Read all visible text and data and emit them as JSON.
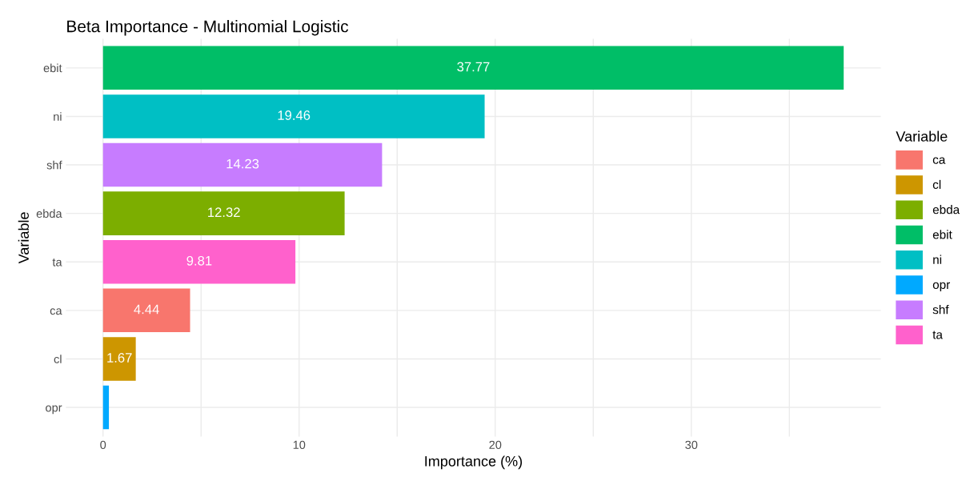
{
  "chart_data": {
    "type": "bar",
    "orientation": "horizontal",
    "title": "Beta Importance - Multinomial Logistic",
    "xlabel": "Importance (%)",
    "ylabel": "Variable",
    "legend_title": "Variable",
    "legend": "right",
    "grid": true,
    "categories": [
      "ebit",
      "ni",
      "shf",
      "ebda",
      "ta",
      "ca",
      "cl",
      "opr"
    ],
    "xlim": [
      -1.89,
      39.66
    ],
    "xticks": [
      0,
      {
        "value": 5,
        "label": null
      },
      10,
      {
        "value": 15,
        "label": null
      },
      20,
      {
        "value": 25,
        "label": null
      },
      30,
      {
        "value": 35,
        "label": null
      }
    ],
    "series": [
      {
        "name": "ca",
        "color": "#f8766d",
        "values": [
          null,
          null,
          null,
          null,
          null,
          4.44,
          null,
          null
        ],
        "value_labels": [
          null,
          null,
          null,
          null,
          null,
          "4.44",
          null,
          null
        ]
      },
      {
        "name": "cl",
        "color": "#cd9600",
        "values": [
          null,
          null,
          null,
          null,
          null,
          null,
          1.67,
          null
        ],
        "value_labels": [
          null,
          null,
          null,
          null,
          null,
          null,
          "1.67",
          null
        ]
      },
      {
        "name": "ebda",
        "color": "#7cae00",
        "values": [
          null,
          null,
          null,
          12.32,
          null,
          null,
          null,
          null
        ],
        "value_labels": [
          null,
          null,
          null,
          "12.32",
          null,
          null,
          null,
          null
        ]
      },
      {
        "name": "ebit",
        "color": "#00be67",
        "values": [
          37.77,
          null,
          null,
          null,
          null,
          null,
          null,
          null
        ],
        "value_labels": [
          "37.77",
          null,
          null,
          null,
          null,
          null,
          null,
          null
        ]
      },
      {
        "name": "ni",
        "color": "#00bfc4",
        "values": [
          null,
          19.46,
          null,
          null,
          null,
          null,
          null,
          null
        ],
        "value_labels": [
          null,
          "19.46",
          null,
          null,
          null,
          null,
          null,
          null
        ]
      },
      {
        "name": "opr",
        "color": "#00a9ff",
        "values": [
          null,
          null,
          null,
          null,
          null,
          null,
          null,
          0.3
        ],
        "value_labels": [
          null,
          null,
          null,
          null,
          null,
          null,
          null,
          null
        ]
      },
      {
        "name": "shf",
        "color": "#c77cff",
        "values": [
          null,
          null,
          14.23,
          null,
          null,
          null,
          null,
          null
        ],
        "value_labels": [
          null,
          null,
          "14.23",
          null,
          null,
          null,
          null,
          null
        ]
      },
      {
        "name": "ta",
        "color": "#ff61cc",
        "values": [
          null,
          null,
          null,
          null,
          9.81,
          null,
          null,
          null
        ],
        "value_labels": [
          null,
          null,
          null,
          null,
          "9.81",
          null,
          null,
          null
        ]
      }
    ]
  }
}
